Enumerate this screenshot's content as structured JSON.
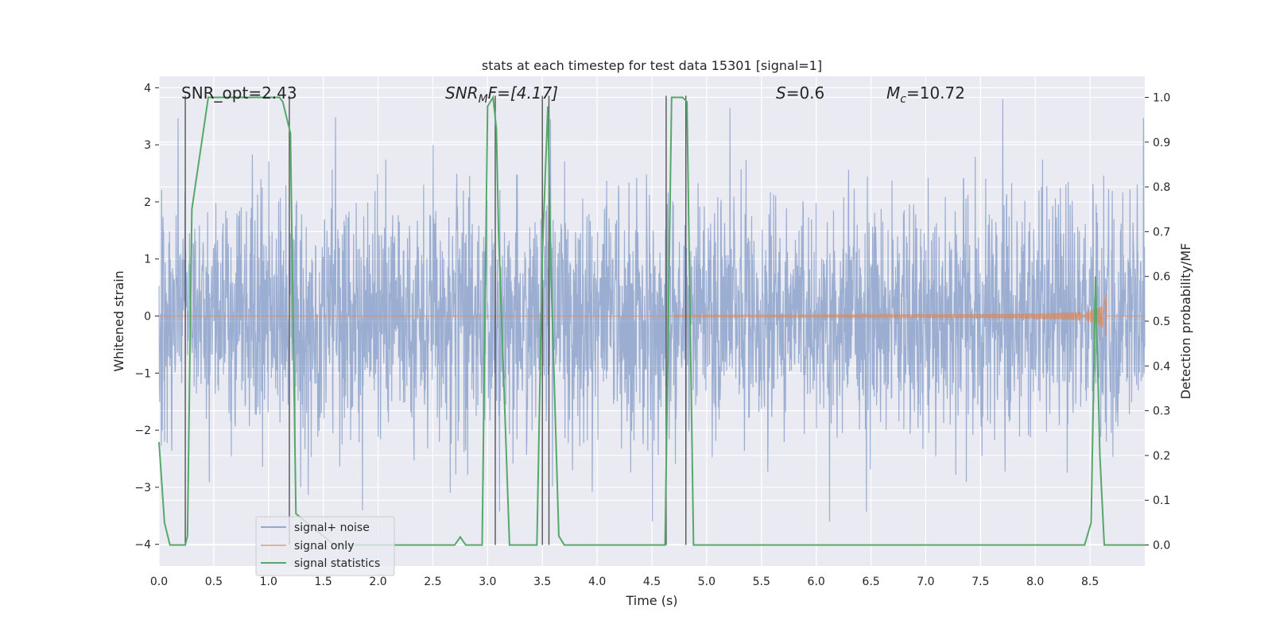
{
  "chart_data": {
    "type": "line",
    "title": "stats at each timestep for test data 15301 [signal=1]",
    "xlabel": "Time (s)",
    "ylabel_left": "Whitened strain",
    "ylabel_right": "Detection probability/MF",
    "xlim": [
      0,
      9
    ],
    "ylim_left": [
      -4.38,
      4.2
    ],
    "ylim_right": [
      -0.047,
      1.047
    ],
    "x_ticks": [
      "0.0",
      "0.5",
      "1.0",
      "1.5",
      "2.0",
      "2.5",
      "3.0",
      "3.5",
      "4.0",
      "4.5",
      "5.0",
      "5.5",
      "6.0",
      "6.5",
      "7.0",
      "7.5",
      "8.0",
      "8.5"
    ],
    "y_ticks_left": [
      "−4",
      "−3",
      "−2",
      "−1",
      "0",
      "1",
      "2",
      "3",
      "4"
    ],
    "y_ticks_right": [
      "0.0",
      "0.1",
      "0.2",
      "0.3",
      "0.4",
      "0.5",
      "0.6",
      "0.7",
      "0.8",
      "0.9",
      "1.0"
    ],
    "grid": true,
    "legend_position": "lower-left",
    "annotations": {
      "snr_opt": "SNR_opt=2.43",
      "snr_mf_base": "SNR",
      "snr_mf_sub": "M",
      "snr_mf_rest": "F=[4.17]",
      "s_italic": "S",
      "s_rest": "=0.6",
      "mc_base": "M",
      "mc_sub": "c",
      "mc_rest": "=10.72"
    },
    "series": [
      {
        "name": "signal+ noise",
        "color": "#4c72b0",
        "description_values": "whitened noise, approximately within [-3.6, 3.8]"
      },
      {
        "name": "signal only",
        "color": "#dd8452",
        "chirp_start": 4.7,
        "chirp_end": 8.65,
        "peak_amplitude": 0.4
      },
      {
        "name": "signal statistics",
        "color": "#55a868",
        "axis": "right",
        "x": [
          0.0,
          0.05,
          0.1,
          0.24,
          0.26,
          0.3,
          0.45,
          1.1,
          1.13,
          1.2,
          1.25,
          1.3,
          1.35,
          1.6,
          2.7,
          2.75,
          2.8,
          2.95,
          3.0,
          3.05,
          3.08,
          3.1,
          3.2,
          3.45,
          3.5,
          3.53,
          3.55,
          3.58,
          3.65,
          3.7,
          4.62,
          4.68,
          4.78,
          4.82,
          4.88,
          4.95,
          8.45,
          8.51,
          8.55,
          8.59,
          8.63,
          8.66,
          9.0
        ],
        "y": [
          0.23,
          0.05,
          0.0,
          0.0,
          0.02,
          0.75,
          1.0,
          1.0,
          0.99,
          0.92,
          0.07,
          0.06,
          0.05,
          0.0,
          0.0,
          0.018,
          0.0,
          0.0,
          0.98,
          1.0,
          0.93,
          0.7,
          0.0,
          0.0,
          0.65,
          0.85,
          0.98,
          0.6,
          0.02,
          0.0,
          0.0,
          1.0,
          1.0,
          0.99,
          0.0,
          0.0,
          0.0,
          0.05,
          0.6,
          0.2,
          0.0,
          0.0,
          0.0
        ]
      }
    ],
    "vertical_lines_x": [
      0.24,
      1.19,
      3.07,
      3.5,
      3.56,
      4.63,
      4.81
    ]
  },
  "legend": {
    "items": [
      {
        "label": "signal+ noise",
        "color": "#4c72b0"
      },
      {
        "label": "signal only",
        "color": "#dd8452"
      },
      {
        "label": "signal statistics",
        "color": "#55a868"
      }
    ]
  }
}
